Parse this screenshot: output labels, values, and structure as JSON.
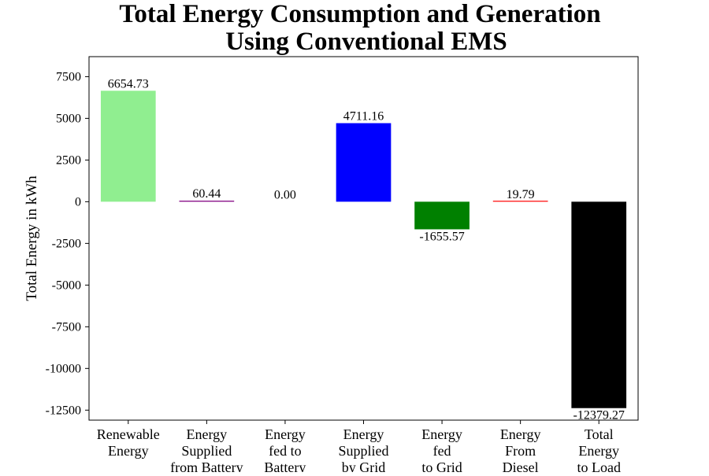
{
  "chart_data": {
    "type": "bar",
    "title": [
      "Total Energy Consumption and Generation",
      "Using Conventional EMS"
    ],
    "xlabel": "",
    "ylabel": "Total Energy in kWh",
    "ylim": [
      -13100,
      8700
    ],
    "yticks": [
      7500,
      5000,
      2500,
      0,
      -2500,
      -5000,
      -7500,
      -10000,
      -12500
    ],
    "grid": false,
    "categories": [
      [
        "Renewable",
        "Energy"
      ],
      [
        "Energy",
        "Supplied",
        "from Battery"
      ],
      [
        "Energy",
        "fed to",
        "Battery"
      ],
      [
        "Energy",
        "Supplied",
        "by Grid"
      ],
      [
        "Energy",
        "fed",
        "to Grid"
      ],
      [
        "Energy",
        "From",
        "Diesel"
      ],
      [
        "Total",
        "Energy",
        "to Load"
      ]
    ],
    "values": [
      6654.73,
      60.44,
      0.0,
      4711.16,
      -1655.57,
      19.79,
      -12379.27
    ],
    "value_labels": [
      "6654.73",
      "60.44",
      "0.00",
      "4711.16",
      "-1655.57",
      "19.79",
      "-12379.27"
    ],
    "colors": [
      "#90ee90",
      "#800080",
      "#ffa500",
      "#0000ff",
      "#008000",
      "#ff0000",
      "#000000"
    ]
  }
}
